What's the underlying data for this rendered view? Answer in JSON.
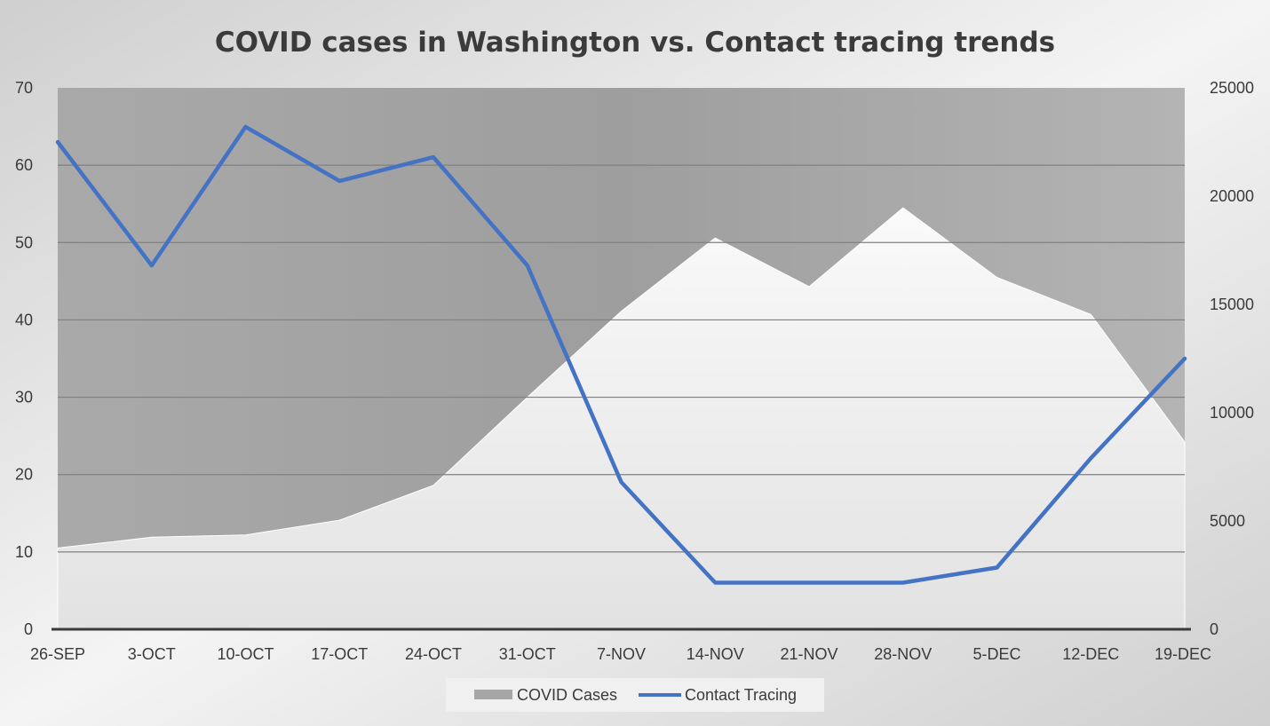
{
  "chart_data": {
    "type": "area",
    "title": "COVID cases in Washington vs. Contact tracing trends",
    "categories": [
      "26-SEP",
      "3-OCT",
      "10-OCT",
      "17-OCT",
      "24-OCT",
      "31-OCT",
      "7-NOV",
      "14-NOV",
      "21-NOV",
      "28-NOV",
      "5-DEC",
      "12-DEC",
      "19-DEC"
    ],
    "series": [
      {
        "name": "COVID Cases",
        "type": "area",
        "axis": "left",
        "values": [
          10.5,
          11.9,
          12.2,
          14.1,
          18.6,
          30.0,
          41.1,
          50.6,
          44.3,
          54.5,
          45.5,
          40.7,
          24.2
        ]
      },
      {
        "name": "Contact Tracing",
        "type": "line",
        "axis": "right",
        "color": "#4472C4",
        "values": [
          22500,
          16800,
          23200,
          20700,
          21800,
          16800,
          6800,
          2150,
          2150,
          2150,
          2850,
          7900,
          12500
        ]
      }
    ],
    "ylim_left": [
      0,
      70
    ],
    "yticks_left": [
      "0",
      "10",
      "20",
      "30",
      "40",
      "50",
      "60",
      "70"
    ],
    "ylim_right": [
      0,
      25000
    ],
    "yticks_right": [
      "0",
      "5000",
      "10000",
      "15000",
      "20000",
      "25000"
    ],
    "legend": "bottom",
    "grid": true,
    "colors": {
      "area_fill": "#efefef",
      "line": "#4472C4",
      "plot_background": "#a8a8a8",
      "gridline": "#7f7f7f"
    }
  }
}
